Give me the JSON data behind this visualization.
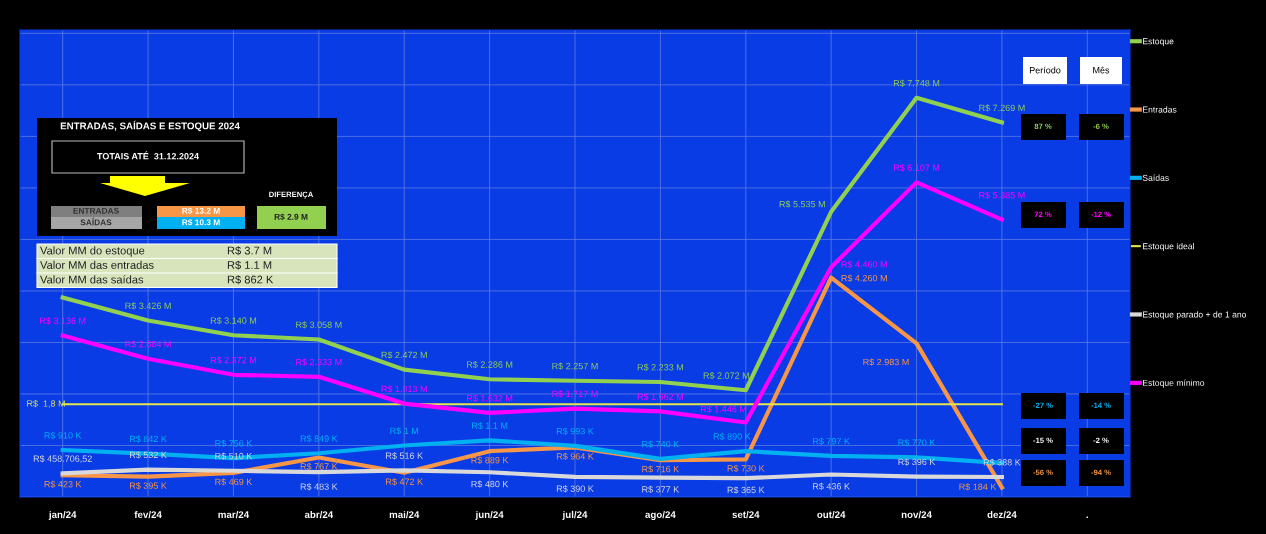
{
  "chart_data": {
    "type": "line",
    "title": "ENTRADAS, SAÍDAS E ESTOQUE 2024",
    "categories": [
      "jan/24",
      "fev/24",
      "mar/24",
      "abr/24",
      "mai/24",
      "jun/24",
      "jul/24",
      "ago/24",
      "set/24",
      "out/24",
      "nov/24",
      "dez/24",
      "."
    ],
    "series": [
      {
        "name": "Estoque",
        "color": "#92d050",
        "values": [
          3.87,
          3.426,
          3.14,
          3.058,
          2.472,
          2.286,
          2.257,
          2.233,
          2.072,
          5.535,
          7.748,
          7.269,
          null
        ],
        "value_labels": [
          null,
          "R$ 3.426 M",
          "R$ 3.140 M",
          "R$ 3.058 M",
          "R$ 2.472 M",
          "R$ 2.286 M",
          "R$ 2.257 M",
          "R$ 2.233 M",
          "R$ 2.072 M",
          "R$ 5.535 M",
          "R$ 7.748 M",
          "R$ 7.269 M",
          null
        ]
      },
      {
        "name": "Entradas",
        "color": "#f79646",
        "values": [
          0.423,
          0.395,
          0.469,
          0.767,
          0.472,
          0.889,
          0.964,
          0.716,
          0.73,
          4.26,
          2.983,
          0.184,
          null
        ],
        "value_labels": [
          "R$ 423 K",
          "R$ 395 K",
          "R$ 469 K",
          "R$ 767 K",
          "R$ 472 K",
          "R$ 889 K",
          "R$ 964 K",
          "R$ 716 K",
          "R$ 730 K",
          "R$ 4.260 M",
          "R$ 2.983 M",
          "R$ 184 K",
          null
        ]
      },
      {
        "name": "Saídas",
        "color": "#00b0f0",
        "values": [
          0.91,
          0.842,
          0.756,
          0.849,
          1.0,
          1.1,
          0.993,
          0.74,
          0.89,
          0.797,
          0.77,
          0.66,
          null
        ],
        "value_labels": [
          "R$ 910 K",
          "R$ 842 K",
          "R$ 756 K",
          "R$ 849 K",
          "R$ 1 M",
          "R$ 1.1 M",
          "R$ 993 K",
          "R$ 740 K",
          "R$ 890 K",
          "R$ 797 K",
          "R$ 770 K",
          null,
          null
        ]
      },
      {
        "name": "Estoque ideal",
        "color": "#e6e64a",
        "values": [
          1.8,
          1.8,
          1.8,
          1.8,
          1.8,
          1.8,
          1.8,
          1.8,
          1.8,
          1.8,
          1.8,
          1.8,
          null
        ],
        "value_labels": [
          "R$  1,8 M",
          null,
          null,
          null,
          null,
          null,
          null,
          null,
          null,
          null,
          null,
          null,
          null
        ]
      },
      {
        "name": "Estoque parado + de 1 ano",
        "color": "#d9d9d9",
        "values": [
          0.4587,
          0.532,
          0.51,
          0.483,
          0.516,
          0.48,
          0.39,
          0.377,
          0.365,
          0.436,
          0.396,
          0.388,
          null
        ],
        "value_labels": [
          "R$ 458.706,52",
          "R$ 532 K",
          "R$ 510 K",
          "R$ 483 K",
          "R$ 516 K",
          "R$ 480 K",
          "R$ 390 K",
          "R$ 377 K",
          "R$ 365 K",
          "R$ 436 K",
          "R$ 396 K",
          "R$ 388 K",
          null
        ]
      },
      {
        "name": "Estoque mínimo",
        "color": "#ff00ff",
        "values": [
          3.136,
          2.684,
          2.372,
          2.333,
          1.813,
          1.632,
          1.717,
          1.662,
          1.446,
          4.46,
          6.107,
          5.385,
          null
        ],
        "value_labels": [
          "R$ 3.136 M",
          "R$ 2.684 M",
          "R$ 2.372 M",
          "R$ 2.333 M",
          "R$ 1.813 M",
          "R$ 1.632 M",
          "R$ 1.717 M",
          "R$ 1.662 M",
          "R$ 1.446 M",
          "R$ 4.460 M",
          "R$ 6.107 M",
          "R$ 5.385 M",
          null
        ]
      }
    ],
    "annotations": [
      "TOTAIS ATÉ  31.12.2024",
      "DIFERENÇA",
      "ENTRADAS",
      "SAÍDAS",
      "R$ 13.2 M",
      "R$ 10.3 M",
      "R$ 2.9 M",
      "Valor MM do estoque",
      "R$ 3.7 M",
      "Valor MM das entradas",
      "R$ 1.1 M",
      "Valor MM das saídas",
      "R$ 862 K",
      "Período",
      "Mês",
      "87 %",
      "-6 %",
      "72 %",
      "-12 %",
      "-27 %",
      "-14 %",
      "-15 %",
      "-2 %",
      "-56 %",
      "-94 %"
    ],
    "legend": "right",
    "grid": true,
    "marker": "none",
    "line_style": "solid"
  }
}
